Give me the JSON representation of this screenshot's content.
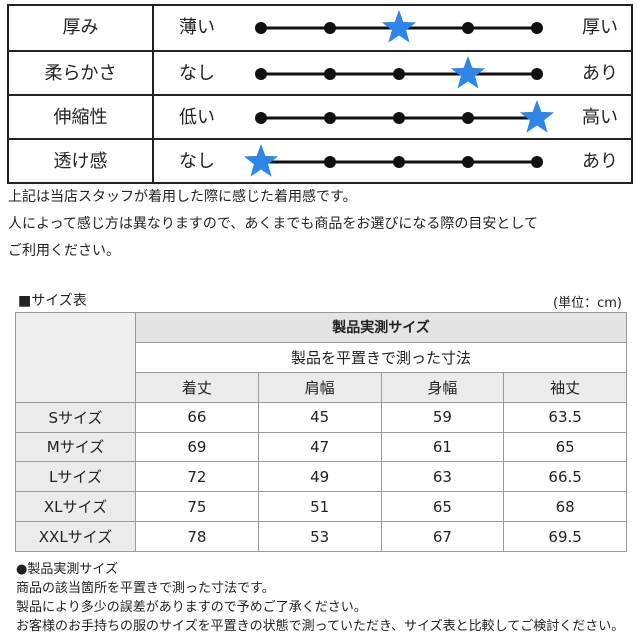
{
  "feel": {
    "rows": [
      {
        "label": "厚み",
        "left": "薄い",
        "right": "厚い",
        "level": 3,
        "steps": 5
      },
      {
        "label": "柔らかさ",
        "left": "なし",
        "right": "あり",
        "level": 4,
        "steps": 5
      },
      {
        "label": "伸縮性",
        "left": "低い",
        "right": "高い",
        "level": 5,
        "steps": 5
      },
      {
        "label": "透け感",
        "left": "なし",
        "right": "あり",
        "level": 1,
        "steps": 5
      }
    ],
    "star_color": "#2e86e8",
    "dot_color": "#111111"
  },
  "note1": [
    "上記は当店スタッフが着用した際に感じた着用感です。",
    "人によって感じ方は異なりますので、あくまでも商品をお選びになる際の目安として",
    "ご利用ください。"
  ],
  "size_table": {
    "title": "■サイズ表",
    "unit": "(単位：cm)",
    "group_header": "製品実測サイズ",
    "sub_header": "製品を平置きで測った寸法",
    "columns": [
      "着丈",
      "肩幅",
      "身幅",
      "袖丈"
    ],
    "rows": [
      {
        "size": "Sサイズ",
        "values": [
          "66",
          "45",
          "59",
          "63.5"
        ]
      },
      {
        "size": "Mサイズ",
        "values": [
          "69",
          "47",
          "61",
          "65"
        ]
      },
      {
        "size": "Lサイズ",
        "values": [
          "72",
          "49",
          "63",
          "66.5"
        ]
      },
      {
        "size": "XLサイズ",
        "values": [
          "75",
          "51",
          "65",
          "68"
        ]
      },
      {
        "size": "XXLサイズ",
        "values": [
          "78",
          "53",
          "67",
          "69.5"
        ]
      }
    ]
  },
  "note2": [
    "●製品実測サイズ",
    "商品の該当箇所を平置きで測った寸法です。",
    "製品により多少の誤差がありますので予めご了承ください。",
    "お客様のお手持ちの服のサイズを平置きの状態で測っていただき、サイズ表と比較してご検討ください。"
  ]
}
